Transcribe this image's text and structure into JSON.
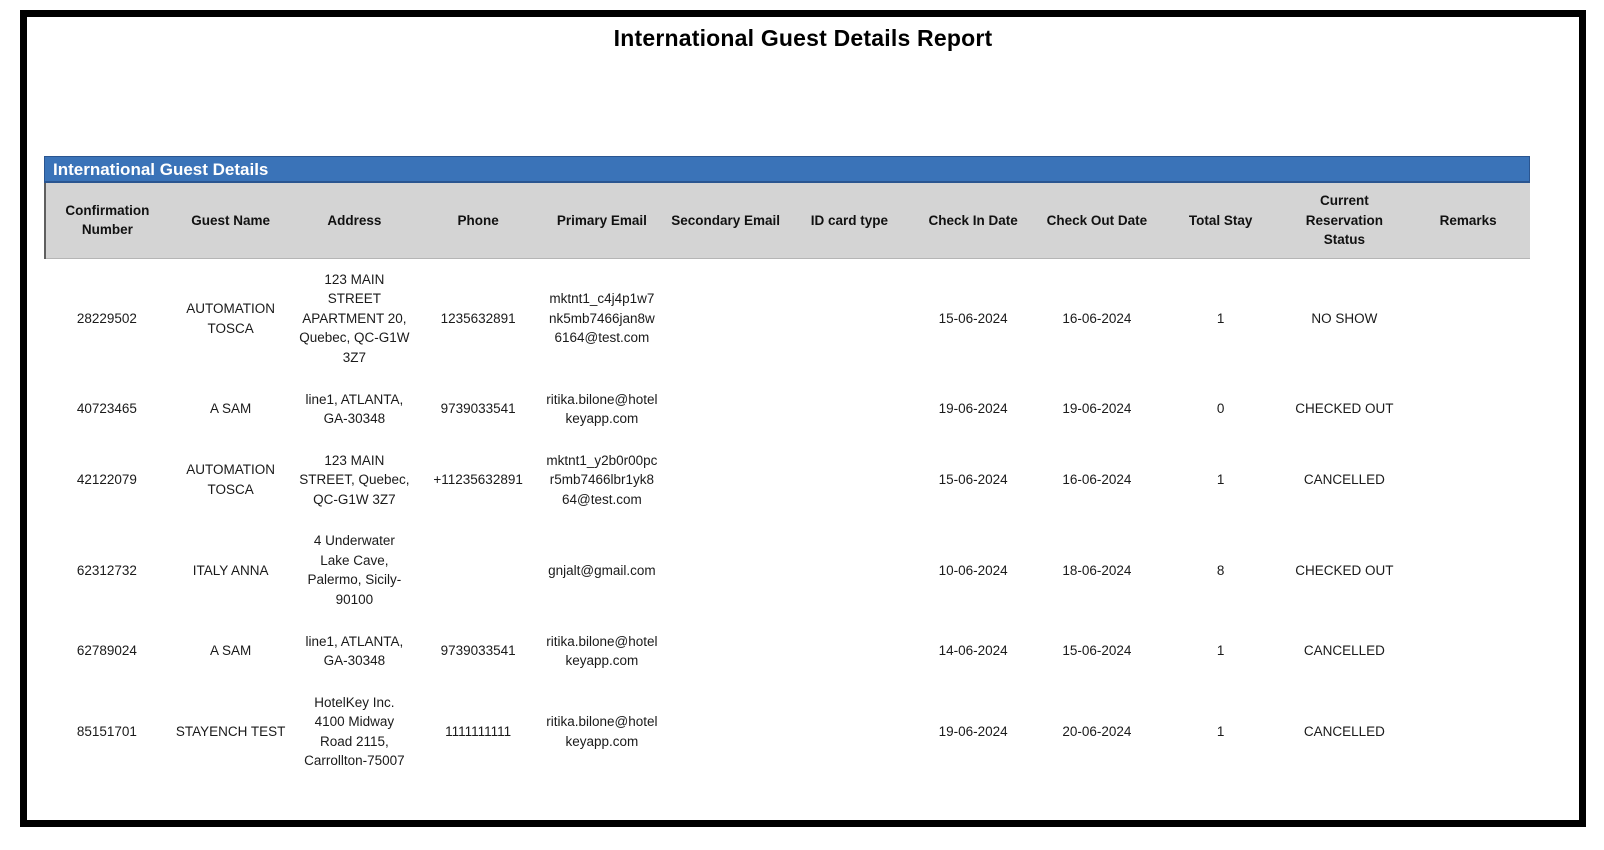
{
  "report": {
    "title": "International Guest Details Report",
    "section_title": "International Guest Details"
  },
  "colors": {
    "section_bar_bg": "#3a73b8",
    "section_bar_border": "#2a5590",
    "header_bg": "#d4d4d4",
    "page_border": "#000000"
  },
  "table": {
    "columns": [
      "Confirmation Number",
      "Guest Name",
      "Address",
      "Phone",
      "Primary Email",
      "Secondary Email",
      "ID card type",
      "Check In Date",
      "Check Out Date",
      "Total Stay",
      "Current Reservation Status",
      "Remarks"
    ],
    "rows": [
      [
        "28229502",
        "AUTOMATION TOSCA",
        "123 MAIN STREET APARTMENT 20, Quebec, QC-G1W 3Z7",
        "1235632891",
        "mktnt1_c4j4p1w7nk5mb7466jan8w6164@test.com",
        "",
        "",
        "15-06-2024",
        "16-06-2024",
        "1",
        "NO SHOW",
        ""
      ],
      [
        "40723465",
        "A SAM",
        "line1, ATLANTA, GA-30348",
        "9739033541",
        "ritika.bilone@hotelkeyapp.com",
        "",
        "",
        "19-06-2024",
        "19-06-2024",
        "0",
        "CHECKED OUT",
        ""
      ],
      [
        "42122079",
        "AUTOMATION TOSCA",
        "123 MAIN STREET, Quebec, QC-G1W 3Z7",
        "+11235632891",
        "mktnt1_y2b0r00pcr5mb7466lbr1yk864@test.com",
        "",
        "",
        "15-06-2024",
        "16-06-2024",
        "1",
        "CANCELLED",
        ""
      ],
      [
        "62312732",
        "ITALY ANNA",
        "4 Underwater Lake Cave, Palermo, Sicily-90100",
        "",
        "gnjalt@gmail.com",
        "",
        "",
        "10-06-2024",
        "18-06-2024",
        "8",
        "CHECKED OUT",
        ""
      ],
      [
        "62789024",
        "A SAM",
        "line1, ATLANTA, GA-30348",
        "9739033541",
        "ritika.bilone@hotelkeyapp.com",
        "",
        "",
        "14-06-2024",
        "15-06-2024",
        "1",
        "CANCELLED",
        ""
      ],
      [
        "85151701",
        "STAYENCH TEST",
        "HotelKey Inc. 4100 Midway Road 2115, Carrollton-75007",
        "1111111111",
        "ritika.bilone@hotelkeyapp.com",
        "",
        "",
        "19-06-2024",
        "20-06-2024",
        "1",
        "CANCELLED",
        ""
      ]
    ]
  }
}
